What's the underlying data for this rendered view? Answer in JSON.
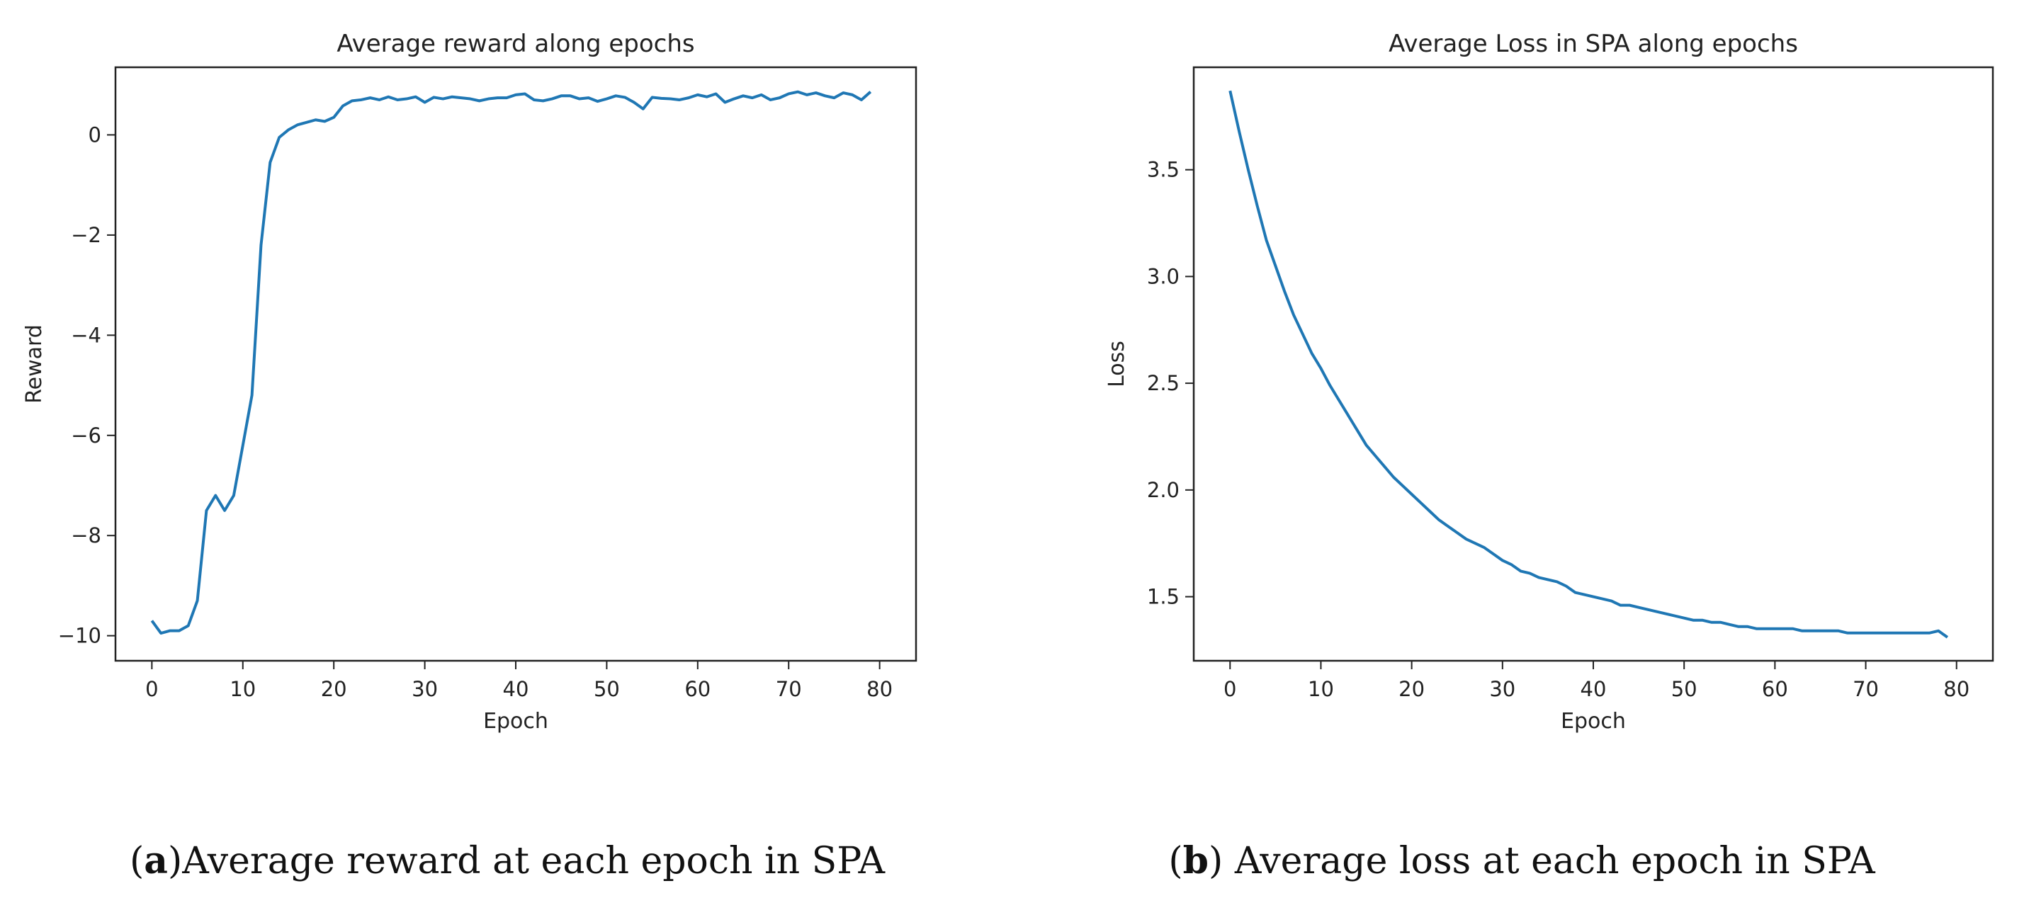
{
  "chart_data": [
    {
      "id": "a",
      "type": "line",
      "title": "Average reward along epochs",
      "xlabel": "Epoch",
      "ylabel": "Reward",
      "xlim": [
        -4,
        84
      ],
      "ylim": [
        -10.5,
        1.35
      ],
      "xticks": [
        0,
        10,
        20,
        30,
        40,
        50,
        60,
        70,
        80
      ],
      "yticks": [
        0,
        -2,
        -4,
        -6,
        -8,
        -10
      ],
      "ytick_labels": [
        "0",
        "−2",
        "−4",
        "−6",
        "−8",
        "−10"
      ],
      "grid": false,
      "color": "#1f77b4",
      "series": [
        {
          "name": "Average reward",
          "x": [
            0,
            1,
            2,
            3,
            4,
            5,
            6,
            7,
            8,
            9,
            10,
            11,
            12,
            13,
            14,
            15,
            16,
            17,
            18,
            19,
            20,
            21,
            22,
            23,
            24,
            25,
            26,
            27,
            28,
            29,
            30,
            31,
            32,
            33,
            34,
            35,
            36,
            37,
            38,
            39,
            40,
            41,
            42,
            43,
            44,
            45,
            46,
            47,
            48,
            49,
            50,
            51,
            52,
            53,
            54,
            55,
            56,
            57,
            58,
            59,
            60,
            61,
            62,
            63,
            64,
            65,
            66,
            67,
            68,
            69,
            70,
            71,
            72,
            73,
            74,
            75,
            76,
            77,
            78,
            79
          ],
          "y": [
            -9.7,
            -9.95,
            -9.9,
            -9.9,
            -9.8,
            -9.3,
            -7.5,
            -7.2,
            -7.5,
            -7.2,
            -6.2,
            -5.2,
            -2.2,
            -0.55,
            -0.05,
            0.1,
            0.2,
            0.25,
            0.3,
            0.27,
            0.35,
            0.58,
            0.68,
            0.7,
            0.74,
            0.7,
            0.76,
            0.7,
            0.72,
            0.76,
            0.65,
            0.75,
            0.72,
            0.76,
            0.74,
            0.72,
            0.68,
            0.72,
            0.74,
            0.74,
            0.8,
            0.82,
            0.7,
            0.68,
            0.72,
            0.78,
            0.78,
            0.72,
            0.74,
            0.67,
            0.72,
            0.78,
            0.75,
            0.65,
            0.52,
            0.75,
            0.73,
            0.72,
            0.7,
            0.74,
            0.8,
            0.76,
            0.82,
            0.65,
            0.72,
            0.78,
            0.74,
            0.8,
            0.7,
            0.74,
            0.82,
            0.86,
            0.8,
            0.84,
            0.78,
            0.74,
            0.84,
            0.8,
            0.7,
            0.86
          ]
        }
      ]
    },
    {
      "id": "b",
      "type": "line",
      "title": "Average Loss in SPA along epochs",
      "xlabel": "Epoch",
      "ylabel": "Loss",
      "xlim": [
        -4,
        84
      ],
      "ylim": [
        1.2,
        3.98
      ],
      "xticks": [
        0,
        10,
        20,
        30,
        40,
        50,
        60,
        70,
        80
      ],
      "yticks": [
        1.5,
        2.0,
        2.5,
        3.0,
        3.5
      ],
      "ytick_labels": [
        "1.5",
        "2.0",
        "2.5",
        "3.0",
        "3.5"
      ],
      "grid": false,
      "color": "#1f77b4",
      "series": [
        {
          "name": "Average loss",
          "x": [
            0,
            1,
            2,
            3,
            4,
            5,
            6,
            7,
            8,
            9,
            10,
            11,
            12,
            13,
            14,
            15,
            16,
            17,
            18,
            19,
            20,
            21,
            22,
            23,
            24,
            25,
            26,
            27,
            28,
            29,
            30,
            31,
            32,
            33,
            34,
            35,
            36,
            37,
            38,
            39,
            40,
            41,
            42,
            43,
            44,
            45,
            46,
            47,
            48,
            49,
            50,
            51,
            52,
            53,
            54,
            55,
            56,
            57,
            58,
            59,
            60,
            61,
            62,
            63,
            64,
            65,
            66,
            67,
            68,
            69,
            70,
            71,
            72,
            73,
            74,
            75,
            76,
            77,
            78,
            79
          ],
          "y": [
            3.87,
            3.68,
            3.5,
            3.33,
            3.17,
            3.05,
            2.93,
            2.82,
            2.73,
            2.64,
            2.57,
            2.49,
            2.42,
            2.35,
            2.28,
            2.21,
            2.16,
            2.11,
            2.06,
            2.02,
            1.98,
            1.94,
            1.9,
            1.86,
            1.83,
            1.8,
            1.77,
            1.75,
            1.73,
            1.7,
            1.67,
            1.65,
            1.62,
            1.61,
            1.59,
            1.58,
            1.57,
            1.55,
            1.52,
            1.51,
            1.5,
            1.49,
            1.48,
            1.46,
            1.46,
            1.45,
            1.44,
            1.43,
            1.42,
            1.41,
            1.4,
            1.39,
            1.39,
            1.38,
            1.38,
            1.37,
            1.36,
            1.36,
            1.35,
            1.35,
            1.35,
            1.35,
            1.35,
            1.34,
            1.34,
            1.34,
            1.34,
            1.34,
            1.33,
            1.33,
            1.33,
            1.33,
            1.33,
            1.33,
            1.33,
            1.33,
            1.33,
            1.33,
            1.34,
            1.31
          ]
        }
      ]
    }
  ],
  "captions": {
    "a": {
      "letter": "a",
      "text": "Average reward at each epoch in SPA"
    },
    "b": {
      "letter": "b",
      "text": " Average loss at each epoch in SPA"
    }
  }
}
